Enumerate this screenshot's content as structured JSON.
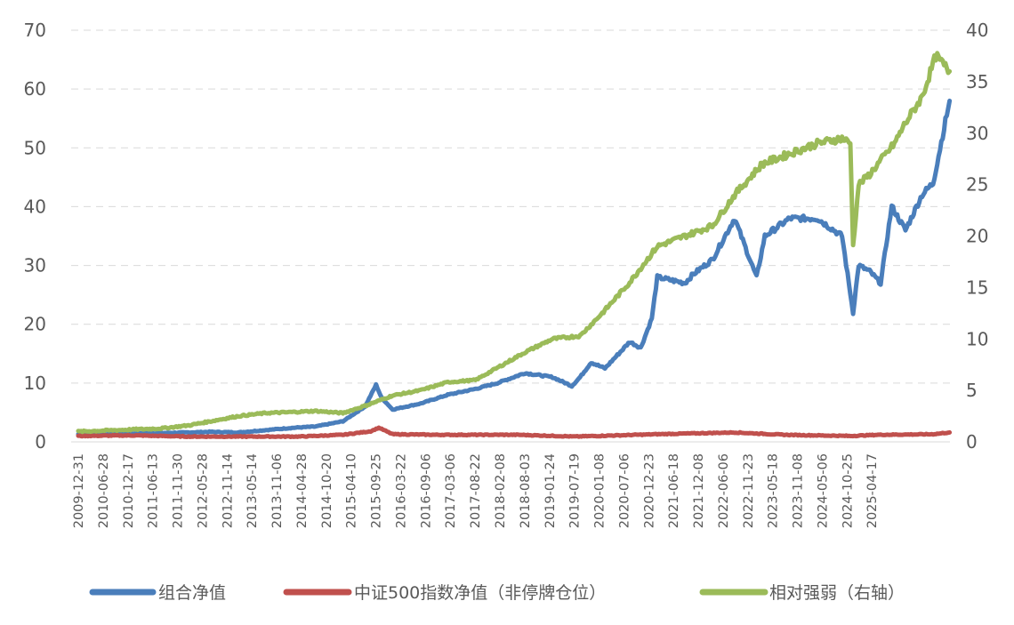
{
  "chart_data": {
    "type": "line",
    "title": "",
    "x_tick_labels": [
      "2009-12-31",
      "2010-06-28",
      "2010-12-17",
      "2011-06-13",
      "2011-11-30",
      "2012-05-28",
      "2012-11-14",
      "2013-05-14",
      "2013-11-06",
      "2014-04-28",
      "2014-10-20",
      "2015-04-10",
      "2015-09-25",
      "2016-03-22",
      "2016-09-06",
      "2017-03-06",
      "2017-08-22",
      "2018-02-08",
      "2018-08-03",
      "2019-01-24",
      "2019-07-19",
      "2020-01-08",
      "2020-07-06",
      "2020-12-23",
      "2021-06-18",
      "2021-12-08",
      "2022-06-06",
      "2022-11-23",
      "2023-05-18",
      "2023-11-08",
      "2024-05-06",
      "2024-10-25",
      "2025-04-17"
    ],
    "x_range_years": [
      2010.0,
      2025.8
    ],
    "y_left": {
      "ticks": [
        "0",
        "10",
        "20",
        "30",
        "40",
        "50",
        "60",
        "70"
      ],
      "range": [
        0,
        70
      ]
    },
    "y_right": {
      "ticks": [
        "0",
        "5",
        "10",
        "15",
        "20",
        "25",
        "30",
        "35",
        "40"
      ],
      "range": [
        0,
        40
      ]
    },
    "grid": true,
    "legend_placement": "bottom",
    "series": [
      {
        "name": "组合净值",
        "axis": "left",
        "color": "#4a7ebb",
        "x": [
          2010.0,
          2010.5,
          2011.0,
          2011.5,
          2012.0,
          2012.4,
          2012.9,
          2013.4,
          2013.9,
          2014.3,
          2014.8,
          2015.2,
          2015.4,
          2015.5,
          2015.7,
          2016.2,
          2016.7,
          2017.2,
          2017.6,
          2018.1,
          2018.6,
          2018.95,
          2019.1,
          2019.3,
          2019.55,
          2020.0,
          2020.2,
          2020.4,
          2020.5,
          2021.0,
          2021.15,
          2021.5,
          2021.9,
          2022.3,
          2022.45,
          2022.9,
          2023.4,
          2023.85,
          2024.05,
          2024.15,
          2024.35,
          2024.55,
          2024.75,
          2025.0,
          2025.3,
          2025.5,
          2025.8
        ],
        "values": [
          1.3,
          1.3,
          1.4,
          1.5,
          1.6,
          1.7,
          1.6,
          2.0,
          2.4,
          2.6,
          3.5,
          6.0,
          9.7,
          7.5,
          5.5,
          6.5,
          8.0,
          9.0,
          10.0,
          11.7,
          11.0,
          9.5,
          11.0,
          13.5,
          12.5,
          17.0,
          16.0,
          21.0,
          28.0,
          27.0,
          28.5,
          31.0,
          38.0,
          28.0,
          35.0,
          38.0,
          38.0,
          35.0,
          22.0,
          30.0,
          29.0,
          27.0,
          40.0,
          36.0,
          42.0,
          44.0,
          58.0
        ]
      },
      {
        "name": "中证500指数净值（非停牌仓位）",
        "axis": "left",
        "color": "#c0504d",
        "x": [
          2010.0,
          2011.0,
          2012.0,
          2013.0,
          2014.0,
          2014.8,
          2015.3,
          2015.45,
          2015.7,
          2016.5,
          2018.0,
          2019.0,
          2020.5,
          2021.9,
          2022.8,
          2024.0,
          2024.5,
          2025.5,
          2025.8
        ],
        "values": [
          1.0,
          1.1,
          0.9,
          0.9,
          0.9,
          1.2,
          1.8,
          2.4,
          1.3,
          1.2,
          1.2,
          0.9,
          1.3,
          1.6,
          1.2,
          1.0,
          1.2,
          1.3,
          1.6
        ]
      },
      {
        "name": "相对强弱（右轴）",
        "axis": "right",
        "color": "#9bbb59",
        "x": [
          2010.0,
          2010.5,
          2011.0,
          2011.5,
          2012.0,
          2012.4,
          2012.9,
          2013.4,
          2013.9,
          2014.3,
          2014.8,
          2015.2,
          2015.7,
          2016.2,
          2016.7,
          2017.2,
          2017.6,
          2018.1,
          2018.6,
          2019.1,
          2019.5,
          2020.0,
          2020.5,
          2021.0,
          2021.5,
          2021.9,
          2022.4,
          2022.9,
          2023.4,
          2023.85,
          2024.0,
          2024.05,
          2024.15,
          2024.35,
          2024.8,
          2025.0,
          2025.3,
          2025.55,
          2025.8
        ],
        "values": [
          1.0,
          1.1,
          1.2,
          1.3,
          1.6,
          2.0,
          2.5,
          2.8,
          2.9,
          3.0,
          2.8,
          3.5,
          4.5,
          5.0,
          5.8,
          6.0,
          7.2,
          8.7,
          10.0,
          10.3,
          12.5,
          15.5,
          19.0,
          20.0,
          21.0,
          24.0,
          27.0,
          28.0,
          29.0,
          29.5,
          29.0,
          19.0,
          25.0,
          26.0,
          29.0,
          31.0,
          33.5,
          37.5,
          36.0
        ]
      }
    ]
  }
}
